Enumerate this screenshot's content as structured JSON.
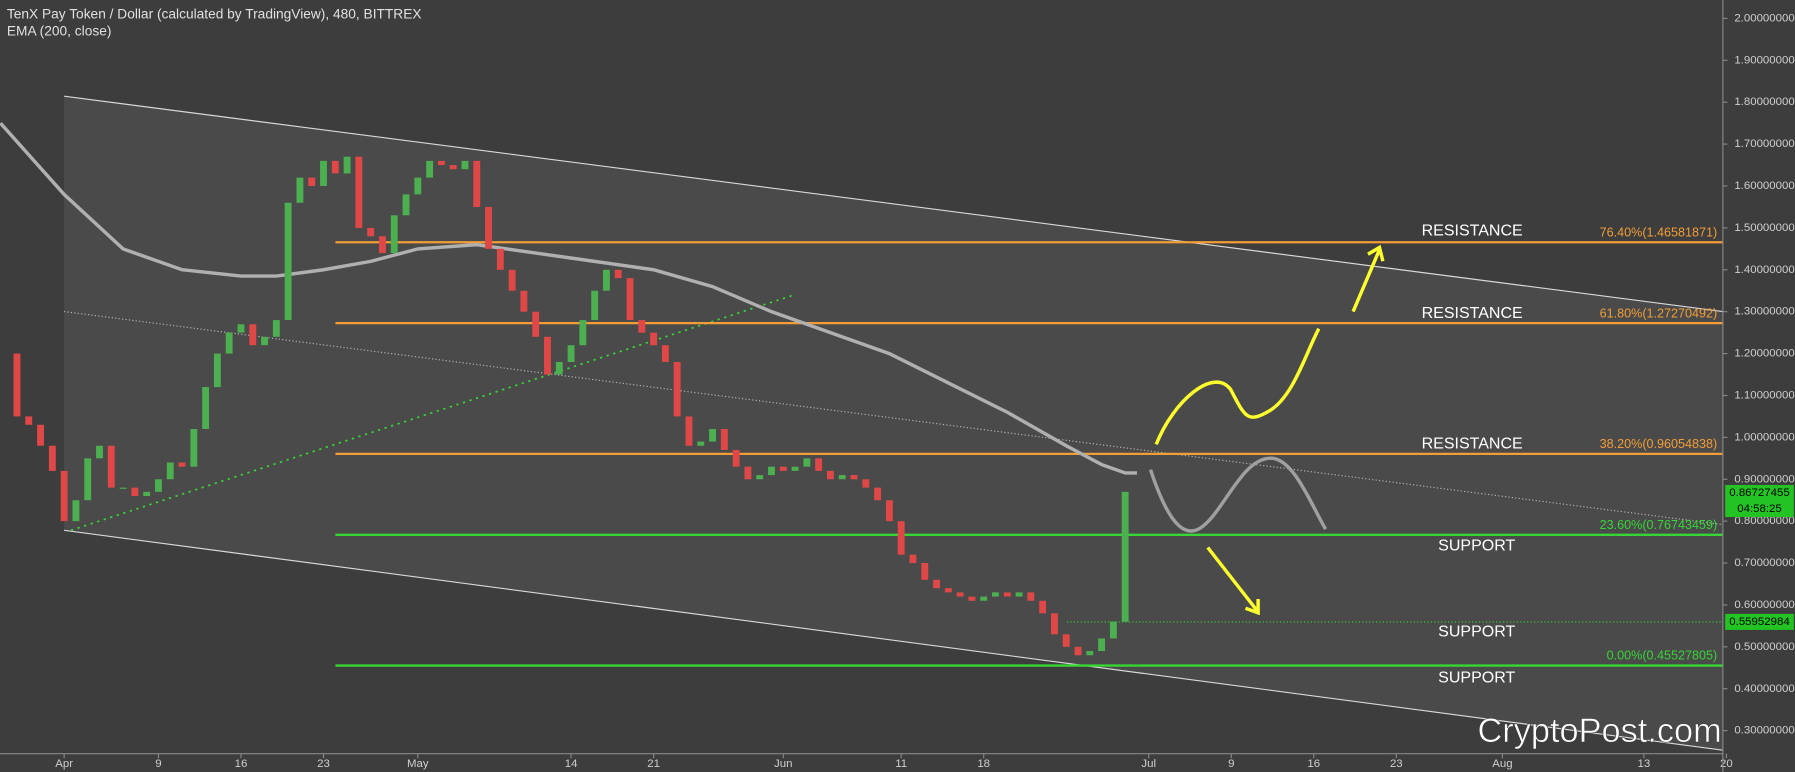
{
  "chart_data": {
    "type": "candlestick",
    "title": "TenX Pay Token / Dollar (calculated by TradingView), 480, BITTREX",
    "x": [
      -5,
      -4,
      -3,
      -2,
      -1,
      0,
      1,
      2,
      3,
      4,
      5,
      6,
      7,
      8,
      9,
      10,
      11,
      12,
      13,
      14,
      15,
      16,
      17,
      18,
      19,
      20,
      21,
      22,
      23,
      24,
      25,
      26,
      27,
      28,
      29,
      30,
      31,
      32,
      33,
      34,
      35,
      36,
      37,
      38,
      39,
      40,
      41,
      42,
      43,
      44,
      45,
      46,
      47,
      48,
      49,
      50,
      51,
      52,
      53,
      54,
      55,
      56,
      57,
      58,
      59,
      60,
      61,
      62,
      63,
      64,
      65,
      66,
      67,
      68,
      69,
      70,
      71,
      72,
      73,
      74,
      75,
      76,
      77,
      78,
      79,
      80,
      81,
      82,
      83,
      84,
      85,
      86,
      87,
      88,
      89,
      90
    ],
    "values": [
      1.2,
      1.05,
      1.03,
      0.98,
      0.92,
      0.8,
      0.85,
      0.95,
      0.98,
      0.88,
      0.88,
      0.86,
      0.87,
      0.9,
      0.94,
      0.93,
      1.02,
      1.12,
      1.2,
      1.25,
      1.27,
      1.22,
      1.24,
      1.28,
      1.56,
      1.62,
      1.6,
      1.66,
      1.63,
      1.67,
      1.5,
      1.48,
      1.44,
      1.53,
      1.58,
      1.62,
      1.66,
      1.65,
      1.64,
      1.66,
      1.55,
      1.45,
      1.4,
      1.35,
      1.3,
      1.24,
      1.15,
      1.18,
      1.22,
      1.28,
      1.35,
      1.4,
      1.38,
      1.28,
      1.25,
      1.22,
      1.18,
      1.05,
      0.98,
      0.99,
      1.02,
      0.97,
      0.93,
      0.9,
      0.91,
      0.93,
      0.92,
      0.93,
      0.95,
      0.92,
      0.9,
      0.91,
      0.9,
      0.88,
      0.85,
      0.8,
      0.72,
      0.7,
      0.66,
      0.64,
      0.63,
      0.62,
      0.61,
      0.62,
      0.63,
      0.62,
      0.63,
      0.61,
      0.58,
      0.53,
      0.5,
      0.48,
      0.49,
      0.52,
      0.56,
      0.87
    ],
    "up_color": "#4caf50",
    "down_color": "#e04848",
    "ema": {
      "label": "EMA (200, close)",
      "color": "#b0b0b0",
      "x": [
        -5.4,
        0,
        5,
        10,
        15,
        18,
        22,
        26,
        30,
        35,
        40,
        45,
        50,
        55,
        60,
        65,
        70,
        75,
        80,
        85,
        88,
        90,
        91
      ],
      "values": [
        1.75,
        1.58,
        1.45,
        1.4,
        1.385,
        1.385,
        1.4,
        1.42,
        1.45,
        1.46,
        1.44,
        1.42,
        1.4,
        1.36,
        1.3,
        1.25,
        1.2,
        1.13,
        1.06,
        0.98,
        0.935,
        0.915,
        0.915
      ]
    },
    "xlim": [
      -5.44,
      140.7
    ],
    "xticks": [
      {
        "value": 0,
        "label": "Apr"
      },
      {
        "value": 8,
        "label": "9"
      },
      {
        "value": 15,
        "label": "16"
      },
      {
        "value": 22,
        "label": "23"
      },
      {
        "value": 30,
        "label": "May"
      },
      {
        "value": 43,
        "label": "14"
      },
      {
        "value": 50,
        "label": "21"
      },
      {
        "value": 61,
        "label": "Jun"
      },
      {
        "value": 71,
        "label": "11"
      },
      {
        "value": 78,
        "label": "18"
      },
      {
        "value": 92,
        "label": "Jul"
      },
      {
        "value": 99,
        "label": "9"
      },
      {
        "value": 106,
        "label": "16"
      },
      {
        "value": 113,
        "label": "23"
      },
      {
        "value": 122,
        "label": "Aug"
      },
      {
        "value": 134,
        "label": "13"
      },
      {
        "value": 141,
        "label": "20"
      }
    ],
    "ylim": [
      0.245,
      2.044
    ],
    "yticks": [
      {
        "value": 0.3,
        "label": "0.30000000"
      },
      {
        "value": 0.4,
        "label": "0.40000000"
      },
      {
        "value": 0.5,
        "label": "0.50000000"
      },
      {
        "value": 0.6,
        "label": "0.60000000"
      },
      {
        "value": 0.7,
        "label": "0.70000000"
      },
      {
        "value": 0.8,
        "label": "0.80000000"
      },
      {
        "value": 0.9,
        "label": "0.90000000"
      },
      {
        "value": 1.0,
        "label": "1.00000000"
      },
      {
        "value": 1.1,
        "label": "1.10000000"
      },
      {
        "value": 1.2,
        "label": "1.20000000"
      },
      {
        "value": 1.3,
        "label": "1.30000000"
      },
      {
        "value": 1.4,
        "label": "1.40000000"
      },
      {
        "value": 1.5,
        "label": "1.50000000"
      },
      {
        "value": 1.6,
        "label": "1.60000000"
      },
      {
        "value": 1.7,
        "label": "1.70000000"
      },
      {
        "value": 1.8,
        "label": "1.80000000"
      },
      {
        "value": 1.9,
        "label": "1.90000000"
      },
      {
        "value": 2.0,
        "label": "2.00000000"
      }
    ],
    "grid": false,
    "levels": [
      {
        "value": 1.46581871,
        "label": "76.40%(1.46581871)",
        "color": "#f29d38"
      },
      {
        "value": 1.27270492,
        "label": "61.80%(1.27270492)",
        "color": "#f29d38"
      },
      {
        "value": 0.96054838,
        "label": "38.20%(0.96054838)",
        "color": "#f29d38"
      },
      {
        "value": 0.76743459,
        "label": "23.60%(0.76743459)",
        "color": "#36d636"
      },
      {
        "value": 0.45527805,
        "label": "0.00%(0.45527805)",
        "color": "#36d636"
      }
    ],
    "annotations": [
      "RESISTANCE",
      "RESISTANCE",
      "RESISTANCE",
      "SUPPORT",
      "SUPPORT",
      "SUPPORT"
    ],
    "price_tags": [
      {
        "value": 0.86727455,
        "label": "0.86727455"
      },
      {
        "value": 0.55952984,
        "label": "0.55952984"
      }
    ],
    "countdown": "04:58:25",
    "watermark": "CryptoPost.com"
  }
}
